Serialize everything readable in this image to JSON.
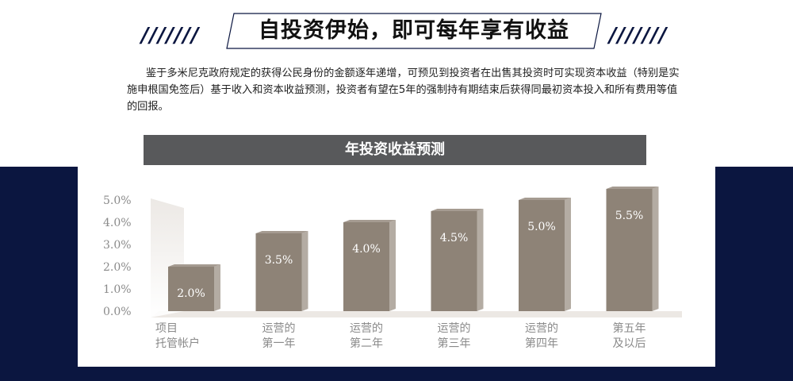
{
  "header": {
    "slashes_left": "///////",
    "slashes_right": "///////",
    "title": "自投资伊始，即可每年享有收益"
  },
  "intro": {
    "text": "鉴于多米尼克政府规定的获得公民身份的金额逐年递增，可预见到投资者在出售其投资时可实现资本收益（特别是实施申根国免签后）基于收入和资本收益预测，投资者有望在5年的强制持有期结束后获得同最初资本投入和所有费用等值的回报。"
  },
  "colors": {
    "navy": "#0b1640",
    "banner": "#58595b",
    "bar_front": "#8e8377",
    "bar_side": "#b4aca3",
    "bar_top": "#a59b91",
    "axis_text": "#8a8a8a",
    "label_text": "#8a8a8a"
  },
  "chart_data": {
    "type": "bar",
    "title": "年投资收益预测",
    "categories": [
      [
        "项目",
        "托管帐户"
      ],
      [
        "运营的",
        "第一年"
      ],
      [
        "运营的",
        "第二年"
      ],
      [
        "运营的",
        "第三年"
      ],
      [
        "运营的",
        "第四年"
      ],
      [
        "第五年",
        "及以后"
      ]
    ],
    "values": [
      2.0,
      3.5,
      4.0,
      4.5,
      5.0,
      5.5
    ],
    "value_labels": [
      "2.0%",
      "3.5%",
      "4.0%",
      "4.5%",
      "5.0%",
      "5.5%"
    ],
    "yticks": [
      "0.0%",
      "1.0%",
      "2.0%",
      "3.0%",
      "4.0%",
      "5.0%"
    ],
    "ylim": [
      0,
      6
    ],
    "grid": false,
    "legend": "none"
  }
}
